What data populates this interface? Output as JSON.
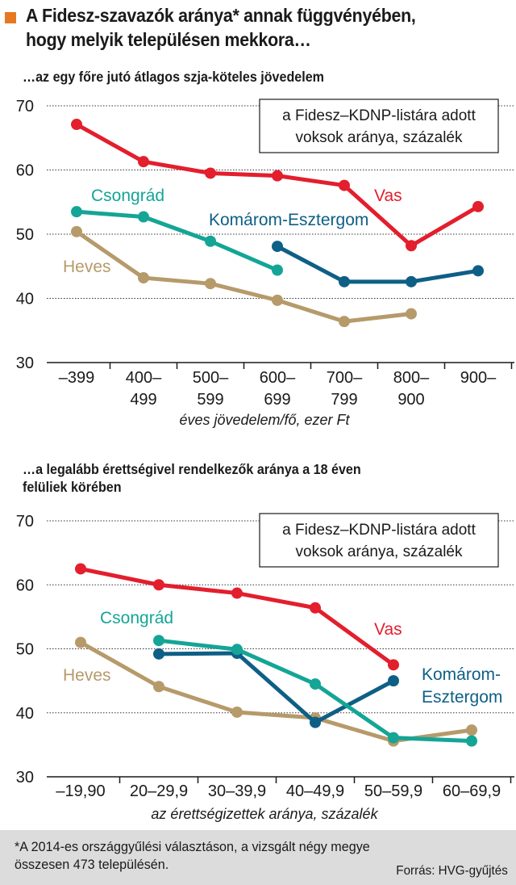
{
  "header": {
    "title_line1": "A Fidesz-szavazók aránya* annak függvényében,",
    "title_line2": "hogy melyik településen mekkora…",
    "accent_color": "#e87722"
  },
  "colors": {
    "Vas": "#e31e2d",
    "Csongrád": "#14a596",
    "Komárom-Esztergom": "#0e5f85",
    "Heves": "#b69a6a"
  },
  "chart_data": [
    {
      "type": "line",
      "title": "…az egy főre jutó átlagos szja-köteles jövedelem",
      "legend_box": [
        "a Fidesz–KDNP-listára adott",
        "voksok aránya, százalék"
      ],
      "xlabel": "éves jövedelem/fő, ezer Ft",
      "categories": [
        [
          "–399"
        ],
        [
          "400–",
          "499"
        ],
        [
          "500–",
          "599"
        ],
        [
          "600–",
          "699"
        ],
        [
          "700–",
          "799"
        ],
        [
          "800–",
          "900"
        ],
        [
          "900–"
        ]
      ],
      "yticks": [
        30,
        40,
        50,
        60,
        70
      ],
      "ylim": [
        30,
        70
      ],
      "grid": true,
      "series": [
        {
          "name": "Vas",
          "values": [
            67.1,
            61.3,
            59.5,
            59.1,
            57.6,
            48.2,
            54.3
          ]
        },
        {
          "name": "Csongrád",
          "values": [
            53.5,
            52.7,
            48.9,
            44.4,
            null,
            null,
            null
          ]
        },
        {
          "name": "Komárom-Esztergom",
          "values": [
            null,
            null,
            null,
            48.1,
            42.6,
            42.6,
            44.3
          ]
        },
        {
          "name": "Heves",
          "values": [
            50.4,
            43.2,
            42.3,
            39.7,
            36.4,
            37.6,
            null
          ]
        }
      ],
      "labels": [
        {
          "name": "Csongrád",
          "lines": [
            "Csongrád"
          ]
        },
        {
          "name": "Komárom-Esztergom",
          "lines": [
            "Komárom-Esztergom"
          ]
        },
        {
          "name": "Vas",
          "lines": [
            "Vas"
          ]
        },
        {
          "name": "Heves",
          "lines": [
            "Heves"
          ]
        }
      ]
    },
    {
      "type": "line",
      "title": "…a legalább érettségivel rendelkezők aránya a 18 éven felüliek körében",
      "title_lines": [
        "…a legalább érettségivel rendelkezők aránya a 18 éven",
        "felüliek körében"
      ],
      "legend_box": [
        "a Fidesz–KDNP-listára adott",
        "voksok aránya, százalék"
      ],
      "xlabel": "az érettségizettek aránya, százalék",
      "categories": [
        [
          "–19,90"
        ],
        [
          "20–29,9"
        ],
        [
          "30–39,9"
        ],
        [
          "40–49,9"
        ],
        [
          "50–59,9"
        ],
        [
          "60–69,9"
        ]
      ],
      "yticks": [
        30,
        40,
        50,
        60,
        70
      ],
      "ylim": [
        30,
        70
      ],
      "grid": true,
      "series": [
        {
          "name": "Vas",
          "values": [
            62.5,
            60.0,
            58.7,
            56.4,
            47.5,
            null
          ]
        },
        {
          "name": "Csongrád",
          "values": [
            null,
            51.3,
            49.9,
            44.5,
            36.1,
            35.6
          ]
        },
        {
          "name": "Komárom-Esztergom",
          "values": [
            null,
            49.2,
            49.3,
            38.5,
            45.0,
            null
          ]
        },
        {
          "name": "Heves",
          "values": [
            51.0,
            44.1,
            40.1,
            39.2,
            35.6,
            37.3
          ]
        }
      ],
      "labels": [
        {
          "name": "Csongrád",
          "lines": [
            "Csongrád"
          ]
        },
        {
          "name": "Vas",
          "lines": [
            "Vas"
          ]
        },
        {
          "name": "Komárom-Esztergom",
          "lines": [
            "Komárom-",
            "Esztergom"
          ]
        },
        {
          "name": "Heves",
          "lines": [
            "Heves"
          ]
        }
      ]
    }
  ],
  "footer": {
    "note_line1": "*A 2014-es országgyűlési választáson, a vizsgált négy megye",
    "note_line2": "összesen 473 településén.",
    "source": "Forrás: HVG-gyűjtés"
  }
}
